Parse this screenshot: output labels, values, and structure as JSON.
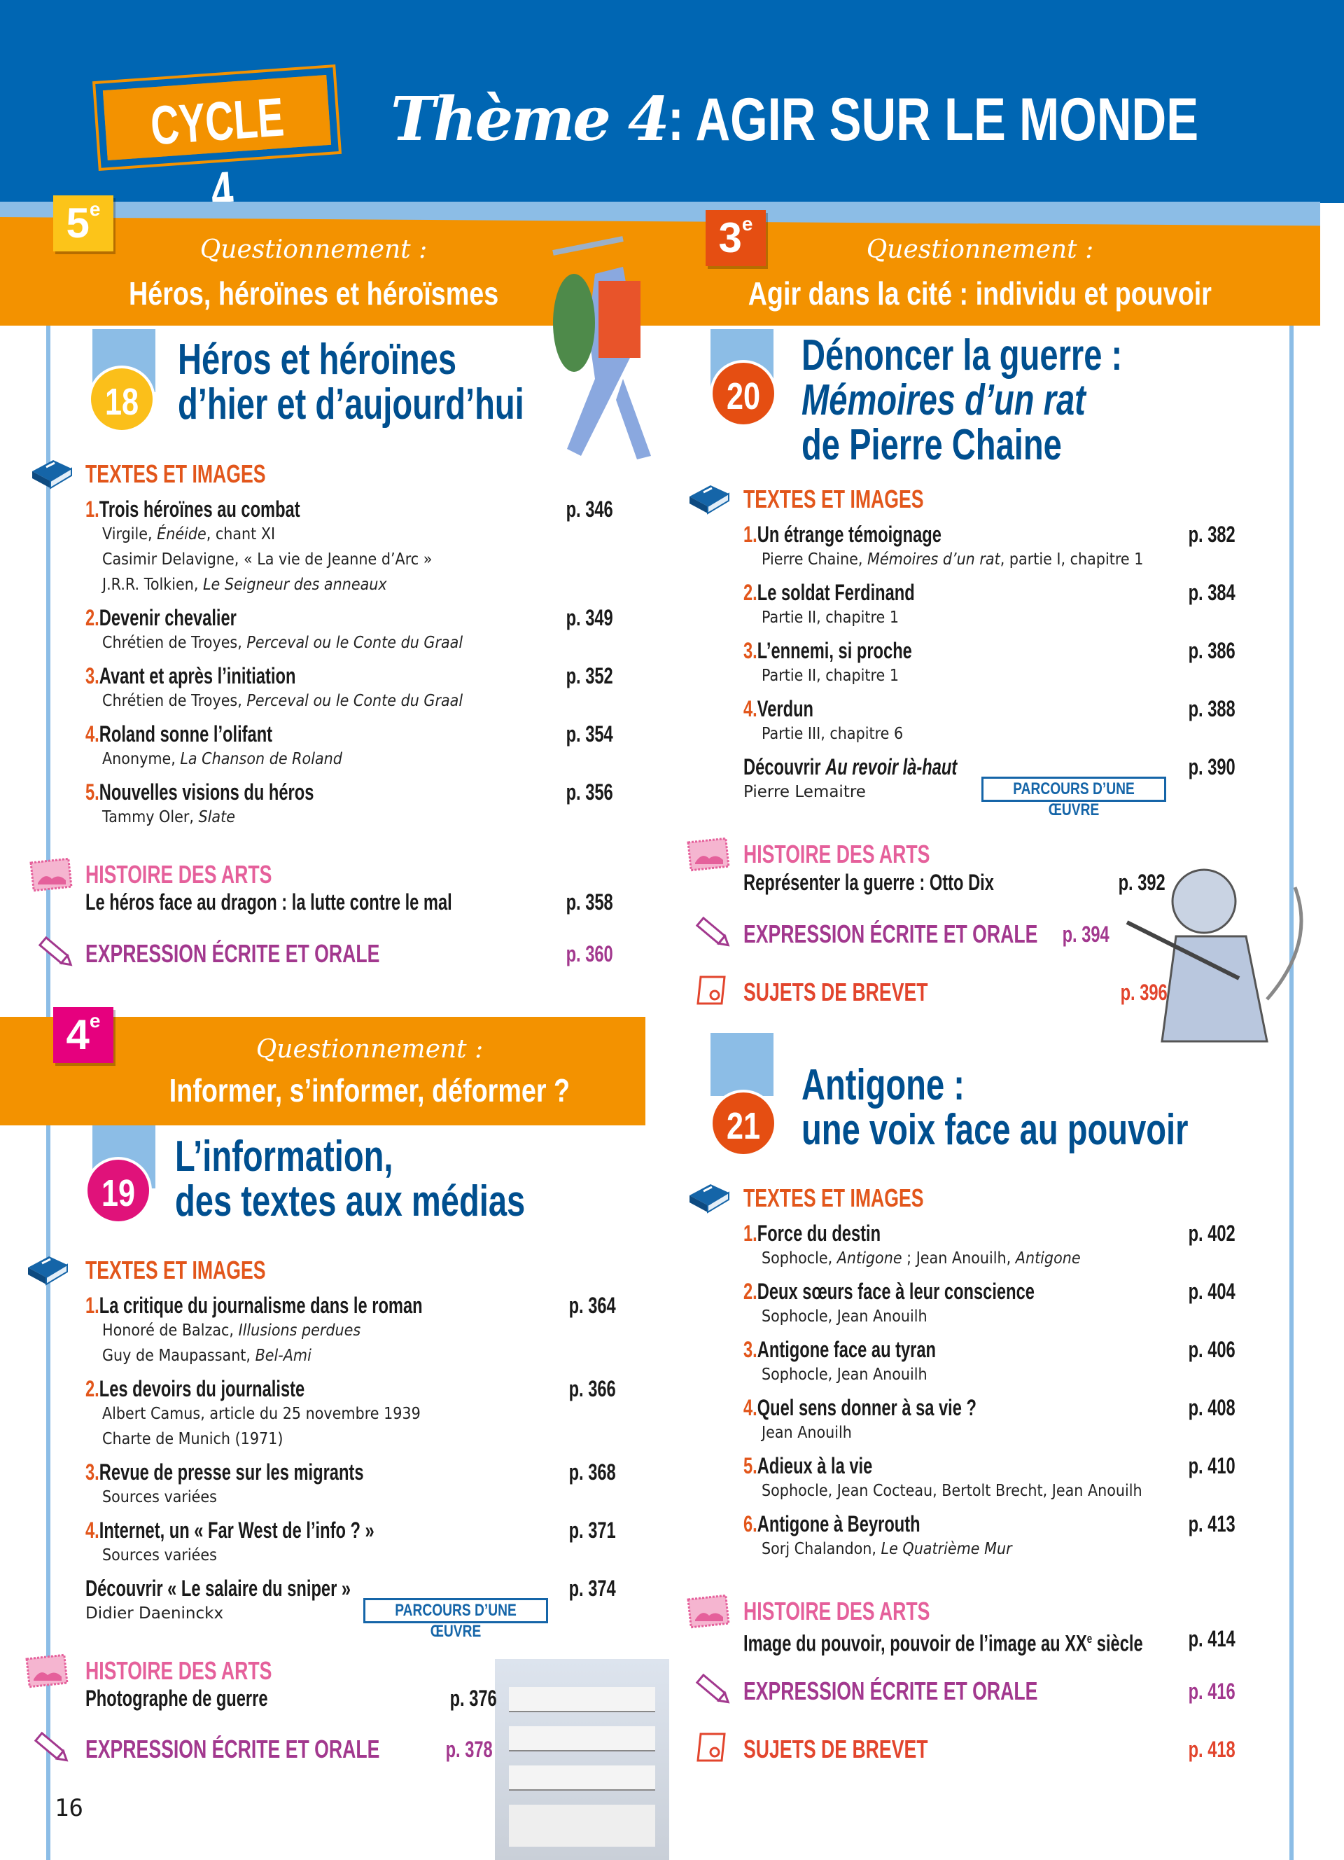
{
  "header": {
    "cycle": "CYCLE 4",
    "theme_script": "Thème 4",
    "theme_title": " : AGIR SUR LE MONDE"
  },
  "colors": {
    "header_blue": "#0066b3",
    "band_orange": "#f39200",
    "light_blue": "#8cbde6",
    "title_blue": "#004f8f",
    "texts_orange": "#e2561b",
    "arts_pink": "#e5609b",
    "expression_purple": "#a2388e",
    "brevet_red": "#e2452d"
  },
  "levels": [
    {
      "grade": "5",
      "sup": "e",
      "label": "Questionnement :",
      "title": "Héros, héroïnes et héroïsmes",
      "color": "#fcc419"
    },
    {
      "grade": "3",
      "sup": "e",
      "label": "Questionnement :",
      "title": "Agir dans la cité : individu et pouvoir",
      "color": "#e54e12"
    },
    {
      "grade": "4",
      "sup": "e",
      "label": "Questionnement :",
      "title": "Informer, s’informer, déformer ?",
      "color": "#e6007e"
    }
  ],
  "chapters": [
    {
      "num": "18",
      "color": "#fbbf1a",
      "title": [
        "Héros et héroïnes",
        "d’hier et d’aujourd’hui"
      ],
      "texts_heading": "TEXTES ET IMAGES",
      "items": [
        {
          "n": "1.",
          "title": "Trois héroïnes au combat",
          "page": "p. 346",
          "subs": [
            [
              [
                "Virgile, ",
                0
              ],
              [
                "Énéide",
                1
              ],
              [
                ", chant XI",
                0
              ]
            ],
            [
              [
                "Casimir Delavigne, « La vie de Jeanne d’Arc »",
                0
              ]
            ],
            [
              [
                "J.R.R. Tolkien, ",
                0
              ],
              [
                "Le Seigneur des anneaux",
                1
              ]
            ]
          ]
        },
        {
          "n": "2.",
          "title": "Devenir chevalier",
          "page": "p. 349",
          "subs": [
            [
              [
                "Chrétien de Troyes, ",
                0
              ],
              [
                "Perceval ou le Conte du Graal",
                1
              ]
            ]
          ]
        },
        {
          "n": "3.",
          "title": "Avant et après l’initiation",
          "page": "p. 352",
          "subs": [
            [
              [
                "Chrétien de Troyes, ",
                0
              ],
              [
                "Perceval ou le Conte du Graal",
                1
              ]
            ]
          ]
        },
        {
          "n": "4.",
          "title": "Roland sonne l’olifant",
          "page": "p. 354",
          "subs": [
            [
              [
                "Anonyme, ",
                0
              ],
              [
                "La Chanson de Roland",
                1
              ]
            ]
          ]
        },
        {
          "n": "5.",
          "title": "Nouvelles visions du héros",
          "page": "p. 356",
          "subs": [
            [
              [
                "Tammy Oler, ",
                0
              ],
              [
                "Slate",
                1
              ]
            ]
          ]
        }
      ],
      "arts": {
        "heading": "HISTOIRE DES ARTS",
        "title": "Le héros face au dragon : la lutte contre le mal",
        "page": "p. 358"
      },
      "expression": {
        "heading": "EXPRESSION ÉCRITE ET ORALE",
        "page": "p. 360"
      }
    },
    {
      "num": "19",
      "color": "#e0127a",
      "title": [
        "L’information,",
        "des textes aux médias"
      ],
      "texts_heading": "TEXTES ET IMAGES",
      "items": [
        {
          "n": "1.",
          "title": "La critique du journalisme dans le roman",
          "page": "p. 364",
          "subs": [
            [
              [
                "Honoré de Balzac, ",
                0
              ],
              [
                "Illusions perdues",
                1
              ]
            ],
            [
              [
                "Guy de Maupassant, ",
                0
              ],
              [
                "Bel-Ami",
                1
              ]
            ]
          ]
        },
        {
          "n": "2.",
          "title": "Les devoirs du journaliste",
          "page": "p. 366",
          "subs": [
            [
              [
                "Albert Camus, article du 25 novembre 1939",
                0
              ]
            ],
            [
              [
                "Charte de Munich (1971)",
                0
              ]
            ]
          ]
        },
        {
          "n": "3.",
          "title": "Revue de presse sur les migrants",
          "page": "p. 368",
          "subs": [
            [
              [
                "Sources variées",
                0
              ]
            ]
          ]
        },
        {
          "n": "4.",
          "title": "Internet, un « Far West de l’info ? »",
          "page": "p. 371",
          "subs": [
            [
              [
                "Sources variées",
                0
              ]
            ]
          ]
        }
      ],
      "discover": {
        "prefix": "Découvrir ",
        "work": "« Le salaire du sniper »",
        "work_italic": false,
        "author": "Didier Daeninckx",
        "badge": "PARCOURS D’UNE ŒUVRE",
        "page": "p. 374"
      },
      "arts": {
        "heading": "HISTOIRE DES ARTS",
        "title": "Photographe de guerre",
        "page": "p. 376"
      },
      "expression": {
        "heading": "EXPRESSION ÉCRITE ET ORALE",
        "page": "p. 378"
      }
    },
    {
      "num": "20",
      "color": "#e54e12",
      "title": [
        "Dénoncer la guerre :",
        "Mémoires d’un rat",
        "de Pierre Chaine"
      ],
      "texts_heading": "TEXTES ET IMAGES",
      "items": [
        {
          "n": "1.",
          "title": "Un étrange témoignage",
          "page": "p. 382",
          "subs": [
            [
              [
                "Pierre Chaine, ",
                0
              ],
              [
                "Mémoires d’un rat",
                1
              ],
              [
                ", partie I, chapitre 1",
                0
              ]
            ]
          ]
        },
        {
          "n": "2.",
          "title": "Le soldat Ferdinand",
          "page": "p. 384",
          "subs": [
            [
              [
                "Partie II, chapitre 1",
                0
              ]
            ]
          ]
        },
        {
          "n": "3.",
          "title": "L’ennemi, si proche",
          "page": "p. 386",
          "subs": [
            [
              [
                "Partie II, chapitre 1",
                0
              ]
            ]
          ]
        },
        {
          "n": "4.",
          "title": "Verdun",
          "page": "p. 388",
          "subs": [
            [
              [
                "Partie III, chapitre 6",
                0
              ]
            ]
          ]
        }
      ],
      "discover": {
        "prefix": "Découvrir ",
        "work": "Au revoir là-haut",
        "work_italic": true,
        "author": "Pierre Lemaitre",
        "badge": "PARCOURS D’UNE ŒUVRE",
        "page": "p. 390"
      },
      "arts": {
        "heading": "HISTOIRE DES ARTS",
        "title": "Représenter la guerre : Otto Dix",
        "page": "p. 392"
      },
      "expression": {
        "heading": "EXPRESSION ÉCRITE ET ORALE",
        "page": "p. 394"
      },
      "brevet": {
        "heading": "SUJETS DE BREVET",
        "page": "p. 396"
      }
    },
    {
      "num": "21",
      "color": "#e54e12",
      "title": [
        "Antigone :",
        "une voix face au pouvoir"
      ],
      "texts_heading": "TEXTES ET IMAGES",
      "items": [
        {
          "n": "1.",
          "title": "Force du destin",
          "page": "p. 402",
          "subs": [
            [
              [
                "Sophocle, ",
                0
              ],
              [
                "Antigone",
                1
              ],
              [
                " ; Jean Anouilh, ",
                0
              ],
              [
                "Antigone",
                1
              ]
            ]
          ]
        },
        {
          "n": "2.",
          "title": "Deux sœurs face à leur conscience",
          "page": "p. 404",
          "subs": [
            [
              [
                "Sophocle, Jean Anouilh",
                0
              ]
            ]
          ]
        },
        {
          "n": "3.",
          "title": "Antigone face au tyran",
          "page": "p. 406",
          "subs": [
            [
              [
                "Sophocle, Jean Anouilh",
                0
              ]
            ]
          ]
        },
        {
          "n": "4.",
          "title": "Quel sens donner à sa vie ?",
          "page": "p. 408",
          "subs": [
            [
              [
                "Jean Anouilh",
                0
              ]
            ]
          ]
        },
        {
          "n": "5.",
          "title": "Adieux à la vie",
          "page": "p. 410",
          "subs": [
            [
              [
                "Sophocle, Jean Cocteau, Bertolt Brecht, Jean Anouilh",
                0
              ]
            ]
          ]
        },
        {
          "n": "6.",
          "title": "Antigone à Beyrouth",
          "page": "p. 413",
          "subs": [
            [
              [
                "Sorj Chalandon, ",
                0
              ],
              [
                "Le Quatrième Mur",
                1
              ]
            ]
          ]
        }
      ],
      "arts": {
        "heading": "HISTOIRE DES ARTS",
        "title": "Image du pouvoir, pouvoir de l’image au XX",
        "title_sup": "e",
        "title_end": " siècle",
        "page": "p. 414"
      },
      "expression": {
        "heading": "EXPRESSION ÉCRITE ET ORALE",
        "page": "p. 416"
      },
      "brevet": {
        "heading": "SUJETS DE BREVET",
        "page": "p. 418"
      }
    }
  ],
  "page_number": "16"
}
